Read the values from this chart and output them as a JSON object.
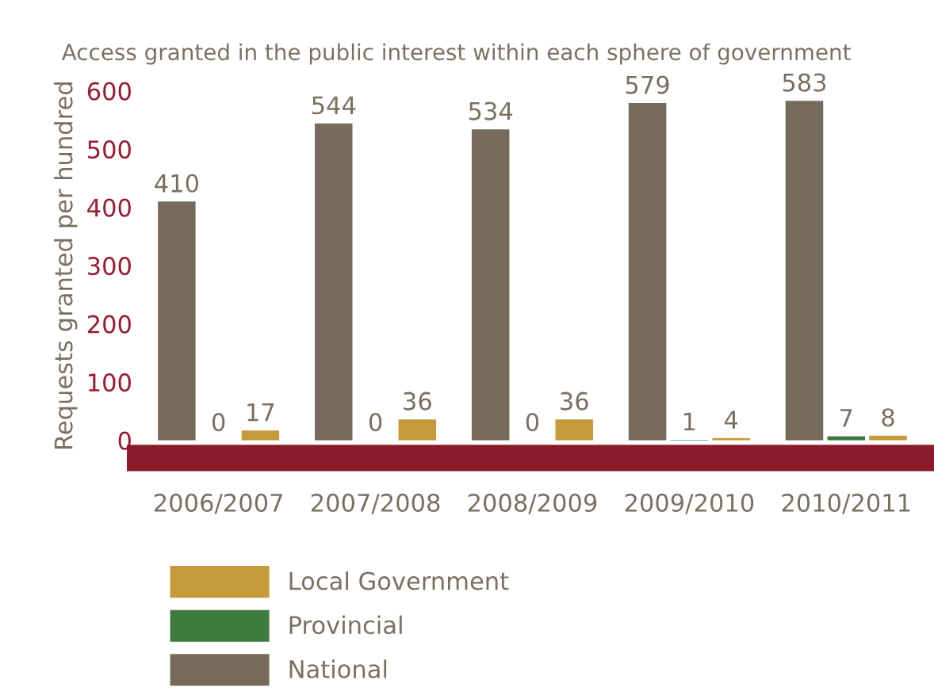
{
  "chart_data": {
    "type": "bar",
    "title": "Access granted in the public interest within each sphere of government",
    "ylabel": "Requests granted per hundred",
    "categories": [
      "2006/2007",
      "2007/2008",
      "2008/2009",
      "2009/2010",
      "2010/2011"
    ],
    "series": [
      {
        "name": "National",
        "color": "#766b5b",
        "values": [
          410,
          544,
          534,
          579,
          583
        ]
      },
      {
        "name": "Provincial",
        "color": "#3f7a3f",
        "values": [
          0,
          0,
          0,
          1,
          7
        ]
      },
      {
        "name": "Local Government",
        "color": "#c49a3a",
        "values": [
          17,
          36,
          36,
          4,
          8
        ]
      }
    ],
    "ylim": [
      0,
      600
    ],
    "yticks": [
      0,
      100,
      200,
      300,
      400,
      500,
      600
    ],
    "data_labels": true,
    "grid": false,
    "legend": "bottom"
  }
}
